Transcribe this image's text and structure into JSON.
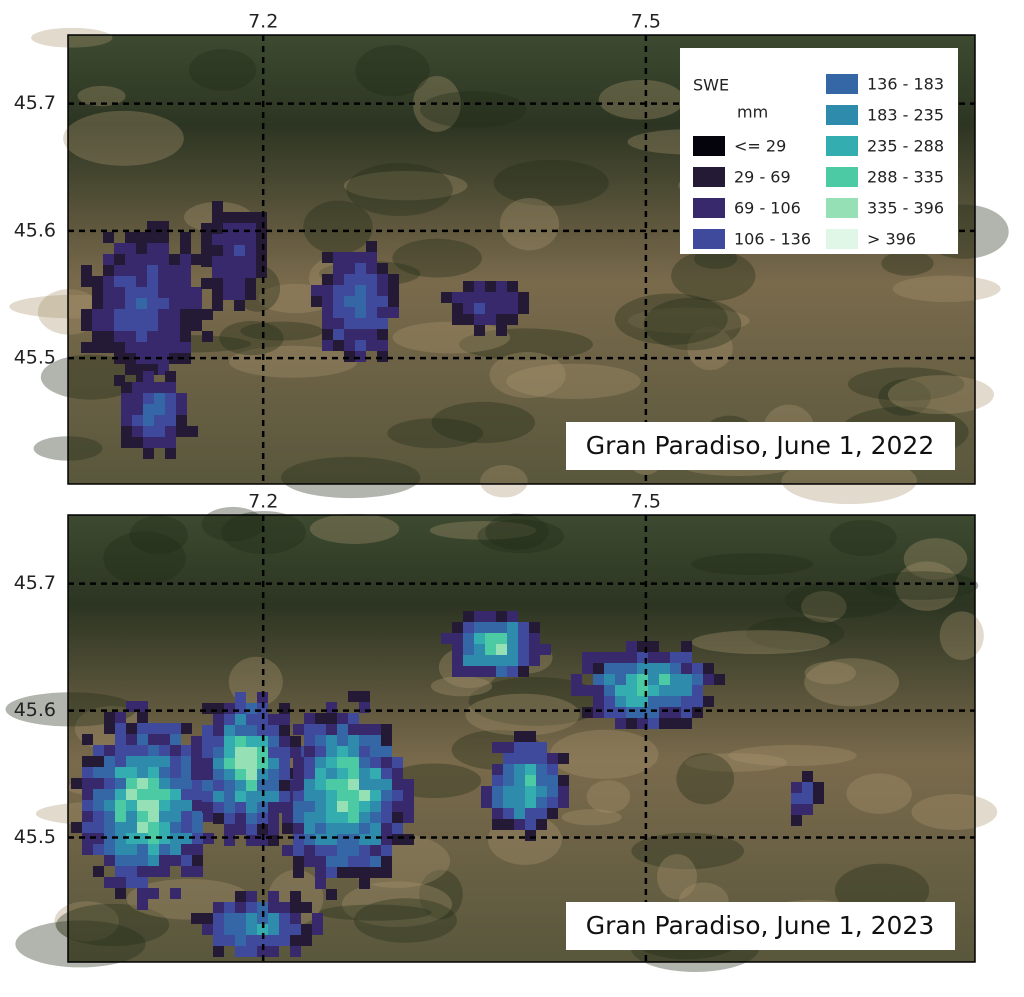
{
  "maps": [
    {
      "label": "Gran Paradiso, June 1, 2022",
      "xlim": [
        7.047,
        7.758
      ],
      "ylim": [
        45.401,
        45.754
      ],
      "xticks": [
        7.2,
        7.5
      ],
      "yticks": [
        45.5,
        45.6,
        45.7
      ]
    },
    {
      "label": "Gran Paradiso, June 1, 2023",
      "xlim": [
        7.047,
        7.758
      ],
      "ylim": [
        45.402,
        45.754
      ],
      "xticks": [
        7.2,
        7.5
      ],
      "yticks": [
        45.5,
        45.6,
        45.7
      ]
    }
  ],
  "legend": {
    "title": "SWE",
    "unit": "mm",
    "entries": [
      {
        "label": "<= 29",
        "color": "#05030c"
      },
      {
        "label": "29 - 69",
        "color": "#241a35"
      },
      {
        "label": "69 - 106",
        "color": "#37296b"
      },
      {
        "label": "106 - 136",
        "color": "#3f4a9c"
      },
      {
        "label": "136 - 183",
        "color": "#3567a6"
      },
      {
        "label": "183 - 235",
        "color": "#2e8bab"
      },
      {
        "label": "235 - 288",
        "color": "#33adb0"
      },
      {
        "label": "288 - 335",
        "color": "#4ccaa4"
      },
      {
        "label": "335 - 396",
        "color": "#95e0b5"
      },
      {
        "label": "> 396",
        "color": "#e0f6e6"
      }
    ]
  }
}
